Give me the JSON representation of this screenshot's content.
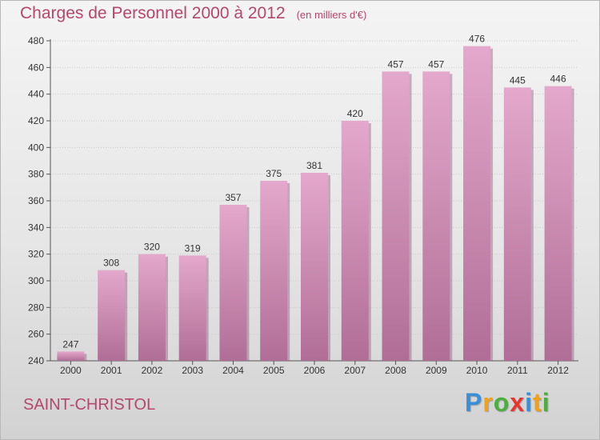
{
  "header": {
    "title": "Charges de Personnel 2000 à 2012",
    "subtitle": "(en milliers d'€)"
  },
  "footer": {
    "commune": "SAINT-CHRISTOL"
  },
  "brand": {
    "letters": [
      "P",
      "r",
      "o",
      "x",
      "i",
      "t",
      "i"
    ],
    "colors": [
      "#3a8fd6",
      "#f0a11c",
      "#4caf3d",
      "#e8352b",
      "#3a8fd6",
      "#f0a11c",
      "#4caf3d"
    ]
  },
  "colors": {
    "bar_top": "#e4a8cc",
    "bar_bottom": "#b06e96",
    "bar_shadow": "#8f5d7b",
    "axis": "#555555",
    "text": "#333333"
  },
  "chart_data": {
    "type": "bar",
    "categories": [
      "2000",
      "2001",
      "2002",
      "2003",
      "2004",
      "2005",
      "2006",
      "2007",
      "2008",
      "2009",
      "2010",
      "2011",
      "2012"
    ],
    "values": [
      247,
      308,
      320,
      319,
      357,
      375,
      381,
      420,
      457,
      457,
      476,
      445,
      446
    ],
    "ylim": [
      240,
      480
    ],
    "yticks": [
      240,
      260,
      280,
      300,
      320,
      340,
      360,
      380,
      400,
      420,
      440,
      460,
      480
    ],
    "grid": true,
    "data_labels": true
  }
}
